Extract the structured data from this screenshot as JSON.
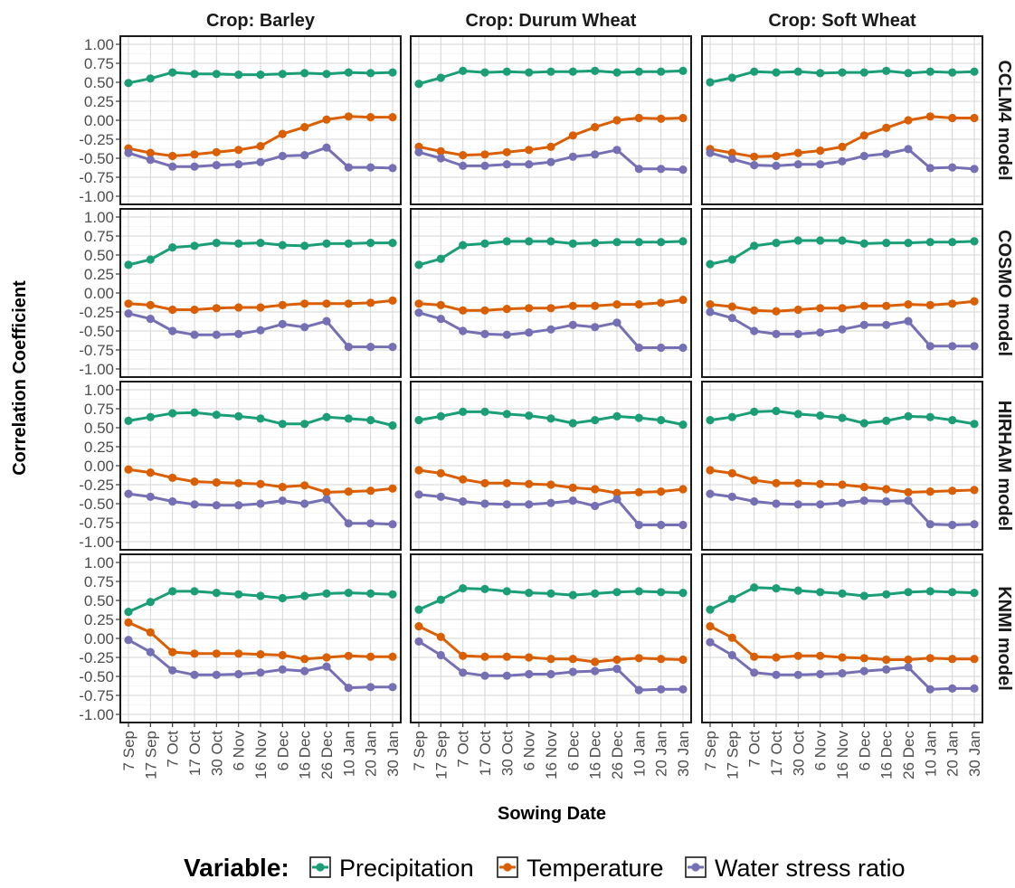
{
  "chart_data": {
    "type": "line",
    "xlabel": "Sowing Date",
    "ylabel": "Correlation Coefficient",
    "ylim": [
      -1.0,
      1.0
    ],
    "y_ticks": [
      "1.00",
      "0.75",
      "0.50",
      "0.25",
      "0.00",
      "-0.25",
      "-0.50",
      "-0.75",
      "-1.00"
    ],
    "categories": [
      "7 Sep",
      "17 Sep",
      "7 Oct",
      "17 Oct",
      "30 Oct",
      "6 Nov",
      "16 Nov",
      "6 Dec",
      "16 Dec",
      "26 Dec",
      "10 Jan",
      "20 Jan",
      "30 Jan"
    ],
    "crops": [
      {
        "id": "barley",
        "label": "Crop: Barley"
      },
      {
        "id": "durum",
        "label": "Crop: Durum Wheat"
      },
      {
        "id": "soft",
        "label": "Crop: Soft Wheat"
      }
    ],
    "models": [
      {
        "id": "cclm4",
        "label": "CCLM4 model"
      },
      {
        "id": "cosmo",
        "label": "COSMO model"
      },
      {
        "id": "hirham",
        "label": "HIRHAM model"
      },
      {
        "id": "knmi",
        "label": "KNMI model"
      }
    ],
    "series_meta": [
      {
        "key": "precipitation",
        "name": "Precipitation",
        "color": "#1b9e77"
      },
      {
        "key": "temperature",
        "name": "Temperature",
        "color": "#d95f02"
      },
      {
        "key": "water_stress",
        "name": "Water stress ratio",
        "color": "#7570b3"
      }
    ],
    "grid": true,
    "legend": {
      "position": "bottom",
      "title": "Variable:"
    },
    "panels": {
      "cclm4": {
        "barley": {
          "precipitation": [
            0.49,
            0.55,
            0.63,
            0.61,
            0.61,
            0.6,
            0.6,
            0.61,
            0.62,
            0.61,
            0.63,
            0.62,
            0.63
          ],
          "temperature": [
            -0.37,
            -0.43,
            -0.47,
            -0.45,
            -0.42,
            -0.39,
            -0.34,
            -0.18,
            -0.09,
            0.01,
            0.05,
            0.04,
            0.04
          ],
          "water_stress": [
            -0.43,
            -0.52,
            -0.61,
            -0.61,
            -0.59,
            -0.58,
            -0.55,
            -0.47,
            -0.46,
            -0.36,
            -0.62,
            -0.62,
            -0.63
          ]
        },
        "durum": {
          "precipitation": [
            0.48,
            0.56,
            0.65,
            0.63,
            0.64,
            0.63,
            0.64,
            0.64,
            0.65,
            0.63,
            0.64,
            0.64,
            0.65
          ],
          "temperature": [
            -0.35,
            -0.41,
            -0.46,
            -0.45,
            -0.42,
            -0.39,
            -0.35,
            -0.2,
            -0.09,
            0.0,
            0.03,
            0.02,
            0.03
          ],
          "water_stress": [
            -0.42,
            -0.5,
            -0.6,
            -0.6,
            -0.58,
            -0.58,
            -0.55,
            -0.48,
            -0.45,
            -0.39,
            -0.64,
            -0.64,
            -0.65
          ]
        },
        "soft": {
          "precipitation": [
            0.5,
            0.56,
            0.64,
            0.63,
            0.64,
            0.62,
            0.63,
            0.63,
            0.65,
            0.62,
            0.64,
            0.63,
            0.64
          ],
          "temperature": [
            -0.38,
            -0.43,
            -0.48,
            -0.47,
            -0.43,
            -0.4,
            -0.35,
            -0.2,
            -0.1,
            0.0,
            0.05,
            0.03,
            0.03
          ],
          "water_stress": [
            -0.43,
            -0.51,
            -0.59,
            -0.6,
            -0.58,
            -0.58,
            -0.54,
            -0.47,
            -0.44,
            -0.38,
            -0.63,
            -0.62,
            -0.64
          ]
        }
      },
      "cosmo": {
        "barley": {
          "precipitation": [
            0.37,
            0.44,
            0.6,
            0.62,
            0.66,
            0.65,
            0.66,
            0.63,
            0.62,
            0.65,
            0.65,
            0.66,
            0.66
          ],
          "temperature": [
            -0.14,
            -0.16,
            -0.22,
            -0.22,
            -0.2,
            -0.19,
            -0.19,
            -0.16,
            -0.14,
            -0.14,
            -0.14,
            -0.13,
            -0.1
          ],
          "water_stress": [
            -0.27,
            -0.34,
            -0.5,
            -0.55,
            -0.55,
            -0.54,
            -0.49,
            -0.41,
            -0.45,
            -0.37,
            -0.71,
            -0.71,
            -0.71
          ]
        },
        "durum": {
          "precipitation": [
            0.37,
            0.45,
            0.63,
            0.65,
            0.68,
            0.68,
            0.68,
            0.65,
            0.66,
            0.67,
            0.67,
            0.67,
            0.68
          ],
          "temperature": [
            -0.14,
            -0.16,
            -0.23,
            -0.23,
            -0.21,
            -0.2,
            -0.2,
            -0.17,
            -0.17,
            -0.15,
            -0.15,
            -0.13,
            -0.09
          ],
          "water_stress": [
            -0.26,
            -0.34,
            -0.5,
            -0.54,
            -0.55,
            -0.52,
            -0.48,
            -0.42,
            -0.45,
            -0.39,
            -0.72,
            -0.72,
            -0.72
          ]
        },
        "soft": {
          "precipitation": [
            0.38,
            0.44,
            0.62,
            0.66,
            0.69,
            0.69,
            0.69,
            0.65,
            0.66,
            0.66,
            0.67,
            0.67,
            0.68
          ],
          "temperature": [
            -0.15,
            -0.18,
            -0.23,
            -0.24,
            -0.22,
            -0.2,
            -0.2,
            -0.17,
            -0.17,
            -0.15,
            -0.16,
            -0.14,
            -0.11
          ],
          "water_stress": [
            -0.25,
            -0.33,
            -0.5,
            -0.54,
            -0.54,
            -0.52,
            -0.48,
            -0.42,
            -0.42,
            -0.37,
            -0.7,
            -0.7,
            -0.7
          ]
        }
      },
      "hirham": {
        "barley": {
          "precipitation": [
            0.59,
            0.64,
            0.69,
            0.7,
            0.67,
            0.65,
            0.62,
            0.55,
            0.55,
            0.64,
            0.62,
            0.6,
            0.53
          ],
          "temperature": [
            -0.05,
            -0.09,
            -0.16,
            -0.21,
            -0.22,
            -0.23,
            -0.24,
            -0.28,
            -0.26,
            -0.35,
            -0.34,
            -0.33,
            -0.3
          ],
          "water_stress": [
            -0.37,
            -0.41,
            -0.47,
            -0.51,
            -0.52,
            -0.52,
            -0.5,
            -0.46,
            -0.5,
            -0.44,
            -0.76,
            -0.76,
            -0.77
          ]
        },
        "durum": {
          "precipitation": [
            0.6,
            0.65,
            0.71,
            0.71,
            0.68,
            0.66,
            0.62,
            0.56,
            0.6,
            0.65,
            0.63,
            0.6,
            0.54
          ],
          "temperature": [
            -0.06,
            -0.1,
            -0.18,
            -0.23,
            -0.23,
            -0.24,
            -0.25,
            -0.29,
            -0.31,
            -0.36,
            -0.35,
            -0.34,
            -0.31
          ],
          "water_stress": [
            -0.38,
            -0.41,
            -0.47,
            -0.5,
            -0.51,
            -0.51,
            -0.49,
            -0.46,
            -0.53,
            -0.44,
            -0.78,
            -0.78,
            -0.78
          ]
        },
        "soft": {
          "precipitation": [
            0.6,
            0.64,
            0.71,
            0.72,
            0.68,
            0.66,
            0.63,
            0.56,
            0.59,
            0.65,
            0.64,
            0.6,
            0.55
          ],
          "temperature": [
            -0.06,
            -0.1,
            -0.19,
            -0.23,
            -0.23,
            -0.24,
            -0.25,
            -0.28,
            -0.31,
            -0.35,
            -0.34,
            -0.33,
            -0.32
          ],
          "water_stress": [
            -0.37,
            -0.41,
            -0.47,
            -0.5,
            -0.51,
            -0.51,
            -0.49,
            -0.46,
            -0.47,
            -0.46,
            -0.77,
            -0.78,
            -0.77
          ]
        }
      },
      "knmi": {
        "barley": {
          "precipitation": [
            0.35,
            0.48,
            0.62,
            0.62,
            0.6,
            0.58,
            0.56,
            0.53,
            0.56,
            0.59,
            0.6,
            0.59,
            0.58
          ],
          "temperature": [
            0.21,
            0.08,
            -0.18,
            -0.2,
            -0.2,
            -0.2,
            -0.21,
            -0.22,
            -0.27,
            -0.25,
            -0.23,
            -0.24,
            -0.24
          ],
          "water_stress": [
            -0.02,
            -0.18,
            -0.42,
            -0.48,
            -0.48,
            -0.47,
            -0.45,
            -0.41,
            -0.43,
            -0.37,
            -0.65,
            -0.64,
            -0.64
          ]
        },
        "durum": {
          "precipitation": [
            0.38,
            0.51,
            0.66,
            0.65,
            0.62,
            0.6,
            0.59,
            0.57,
            0.59,
            0.61,
            0.62,
            0.61,
            0.6
          ],
          "temperature": [
            0.16,
            0.02,
            -0.23,
            -0.24,
            -0.24,
            -0.25,
            -0.27,
            -0.27,
            -0.31,
            -0.28,
            -0.26,
            -0.27,
            -0.28
          ],
          "water_stress": [
            -0.04,
            -0.22,
            -0.45,
            -0.49,
            -0.49,
            -0.47,
            -0.47,
            -0.44,
            -0.43,
            -0.4,
            -0.68,
            -0.67,
            -0.67
          ]
        },
        "soft": {
          "precipitation": [
            0.38,
            0.52,
            0.67,
            0.66,
            0.63,
            0.61,
            0.59,
            0.56,
            0.58,
            0.61,
            0.62,
            0.61,
            0.6
          ],
          "temperature": [
            0.16,
            0.01,
            -0.24,
            -0.25,
            -0.23,
            -0.23,
            -0.25,
            -0.26,
            -0.28,
            -0.28,
            -0.26,
            -0.27,
            -0.27
          ],
          "water_stress": [
            -0.05,
            -0.22,
            -0.45,
            -0.48,
            -0.48,
            -0.47,
            -0.46,
            -0.43,
            -0.41,
            -0.38,
            -0.67,
            -0.66,
            -0.66
          ]
        }
      }
    }
  }
}
